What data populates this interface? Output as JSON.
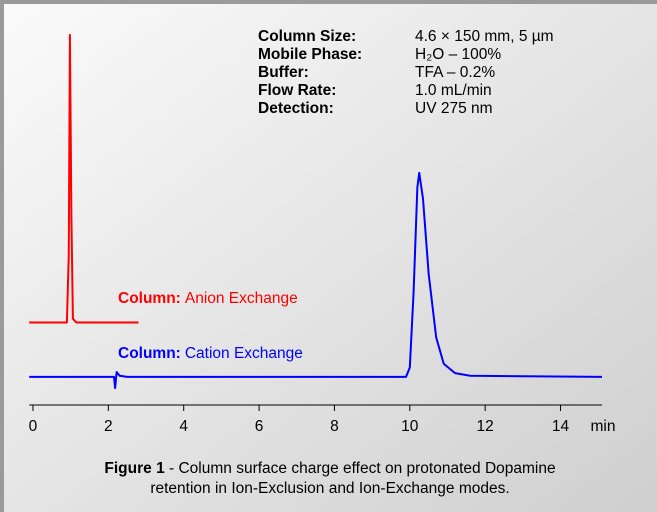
{
  "chart_data": {
    "type": "line",
    "x_label": "min",
    "xlim": [
      -0.1,
      15.1
    ],
    "ylim": [
      0,
      100
    ],
    "xticks": [
      0,
      2,
      4,
      6,
      8,
      10,
      12,
      14
    ],
    "conditions": [
      {
        "label": "Column Size:",
        "value": "4.6 × 150 mm, 5 µm"
      },
      {
        "label": "Mobile Phase:",
        "value": "H₂O – 100%"
      },
      {
        "label": "Buffer:",
        "value": "TFA – 0.2%"
      },
      {
        "label": "Flow Rate:",
        "value": "1.0 mL/min"
      },
      {
        "label": "Detection:",
        "value": "UV 275 nm"
      }
    ],
    "series": [
      {
        "label": "Column:",
        "name": "Anion Exchange",
        "color": "#ff0000",
        "x": [
          -0.1,
          0.9,
          0.95,
          0.98,
          1.02,
          1.06,
          1.15,
          2.8
        ],
        "values": [
          22,
          22,
          40,
          98.7,
          50,
          23,
          22,
          22
        ]
      },
      {
        "label": "Column:",
        "name": "Cation Exchange",
        "color": "#0000ff",
        "x": [
          -0.1,
          2.15,
          2.18,
          2.22,
          2.3,
          2.5,
          9.9,
          10.0,
          10.1,
          10.2,
          10.25,
          10.35,
          10.5,
          10.7,
          10.9,
          11.2,
          11.6,
          15.1
        ],
        "values": [
          7.5,
          7.5,
          4.5,
          8.8,
          7.8,
          7.5,
          7.5,
          10,
          30,
          58,
          61.9,
          55,
          35,
          18,
          11,
          8.5,
          7.8,
          7.5
        ]
      }
    ],
    "caption_label": "Figure 1",
    "caption": "- Column surface charge effect on protonated Dopamine retention in Ion-Exclusion and Ion-Exchange modes."
  }
}
